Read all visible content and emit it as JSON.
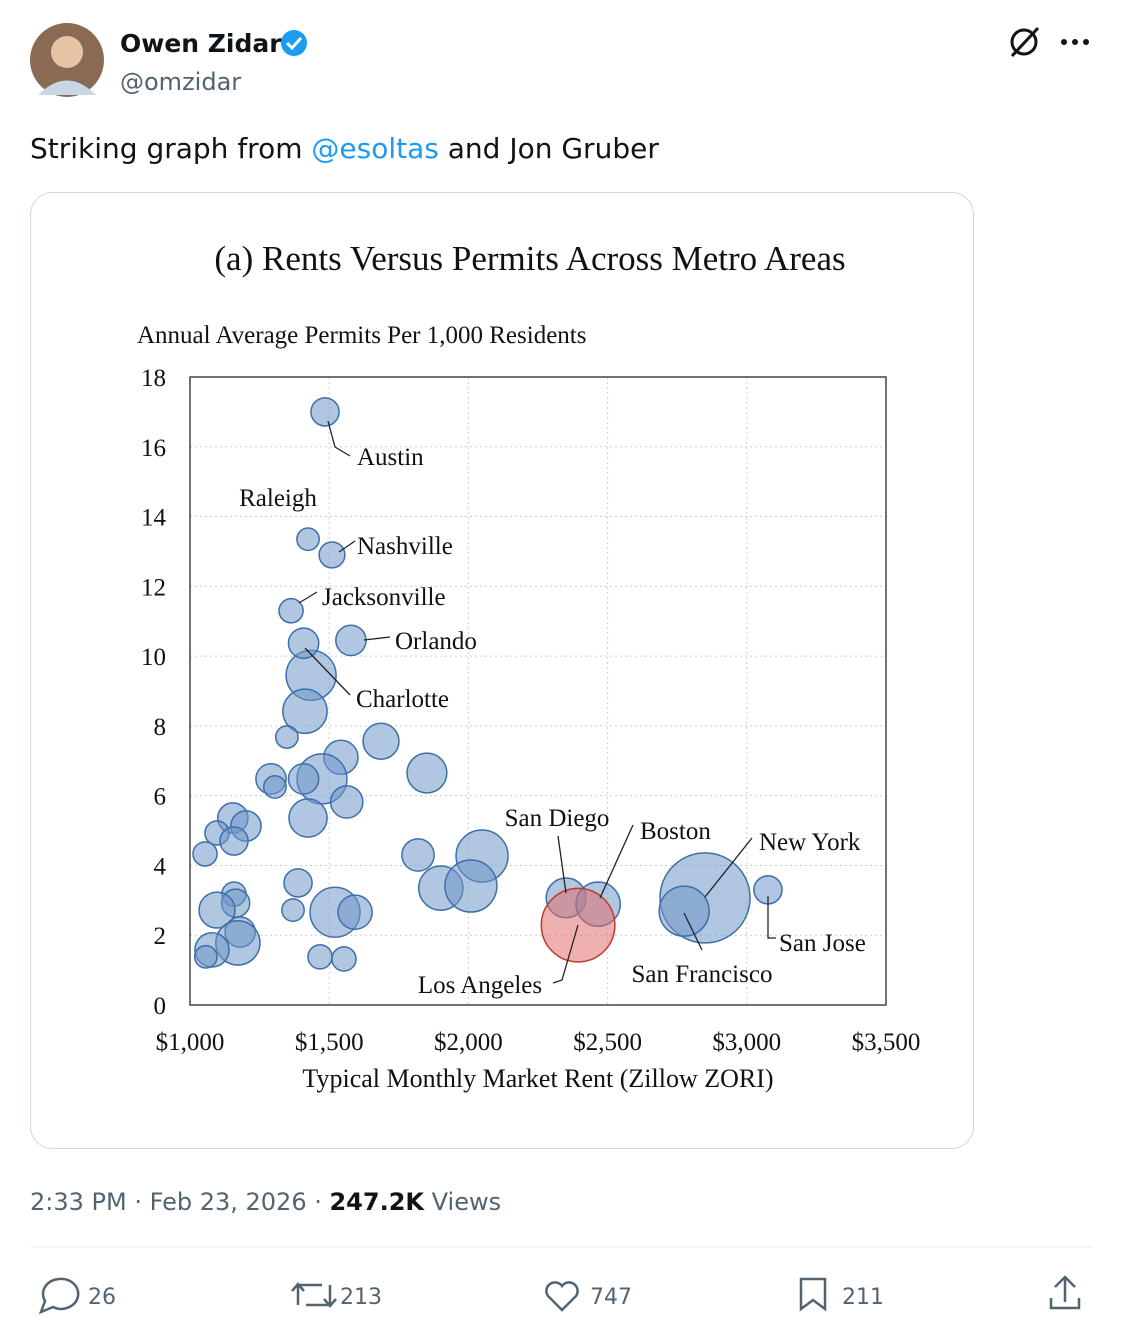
{
  "author": {
    "name": "Owen Zidar",
    "handle": "@omzidar"
  },
  "text_parts": [
    "Striking graph from ",
    "@esoltas",
    " and Jon Gruber"
  ],
  "chart_data": {
    "type": "scatter",
    "title": "(a) Rents Versus Permits Across Metro Areas",
    "ylabel": "Annual Average Permits Per 1,000 Residents",
    "xlabel": "Typical Monthly Market Rent (Zillow ZORI)",
    "xlim": [
      1000,
      3500
    ],
    "xticks": [
      {
        "value": 1000,
        "label": "$1,000"
      },
      {
        "value": 1500,
        "label": "$1,500"
      },
      {
        "value": 2000,
        "label": "$2,000"
      },
      {
        "value": 2500,
        "label": "$2,500"
      },
      {
        "value": 3000,
        "label": "$3,000"
      },
      {
        "value": 3500,
        "label": "$3,500"
      }
    ],
    "ylim": [
      0,
      18
    ],
    "yticks": [
      0,
      2,
      4,
      6,
      8,
      10,
      12,
      14,
      16,
      18
    ],
    "grid": true,
    "series": [
      {
        "color": "#6f97c8",
        "labels": [
          "Austin",
          "Raleigh",
          "Nashville",
          "Jacksonville",
          "Orlando",
          "Charlotte",
          "San Diego",
          "Boston",
          "New York",
          "San Francisco",
          "San Jose",
          null,
          null,
          null,
          null,
          null,
          null,
          null,
          null,
          null,
          null,
          null,
          null,
          null,
          null,
          null,
          null,
          null,
          null,
          null,
          null,
          null,
          null,
          null,
          null,
          null,
          null,
          null,
          null,
          null,
          null,
          null,
          null,
          null,
          null
        ],
        "x": [
          1485,
          1424,
          1510,
          1363,
          1578,
          1435,
          2351,
          2466,
          2850,
          2775,
          3076,
          1408,
          1413,
          1348,
          1686,
          1542,
          1474,
          1291,
          1305,
          1408,
          1851,
          1563,
          1424,
          1154,
          1097,
          1201,
          1158,
          1054,
          1819,
          2049,
          1901,
          2009,
          1388,
          1158,
          1164,
          1097,
          1370,
          1521,
          1593,
          1180,
          1172,
          1079,
          1057,
          1467,
          1553
        ],
        "values": [
          17.0,
          13.35,
          12.9,
          11.3,
          10.45,
          9.45,
          3.07,
          2.89,
          3.07,
          2.69,
          3.3,
          10.37,
          8.42,
          7.68,
          7.56,
          7.1,
          6.48,
          6.48,
          6.25,
          6.48,
          6.65,
          5.82,
          5.36,
          5.36,
          4.93,
          5.13,
          4.7,
          4.33,
          4.3,
          4.27,
          3.35,
          3.41,
          3.5,
          3.18,
          2.92,
          2.72,
          2.72,
          2.66,
          2.66,
          2.09,
          1.78,
          1.58,
          1.38,
          1.38,
          1.32
        ],
        "size": [
          1.9,
          1.2,
          1.6,
          1.4,
          2.2,
          6,
          3.8,
          4.7,
          19.5,
          6,
          1.9,
          2.2,
          4.7,
          1.2,
          3.1,
          2.8,
          6,
          2.2,
          1.2,
          2.2,
          3.8,
          2.5,
          3.5,
          2.2,
          1.4,
          2.2,
          1.9,
          1.4,
          2.5,
          6.5,
          4.7,
          6.5,
          1.9,
          1.4,
          1.9,
          3.1,
          1.2,
          6,
          2.8,
          2.2,
          4.7,
          2.8,
          1.2,
          1.4,
          1.4
        ]
      },
      {
        "color": "#e07070",
        "labels": [
          "Los Angeles"
        ],
        "x": [
          2394
        ],
        "values": [
          2.29
        ],
        "size": [
          13
        ]
      }
    ]
  },
  "timestamp": "2:33 PM · Feb 23, 2026 ·",
  "views_count": "247.2K",
  "views_label": "Views",
  "actions": {
    "replies": 26,
    "reposts": 213,
    "likes": 747,
    "bookmarks": 211
  }
}
